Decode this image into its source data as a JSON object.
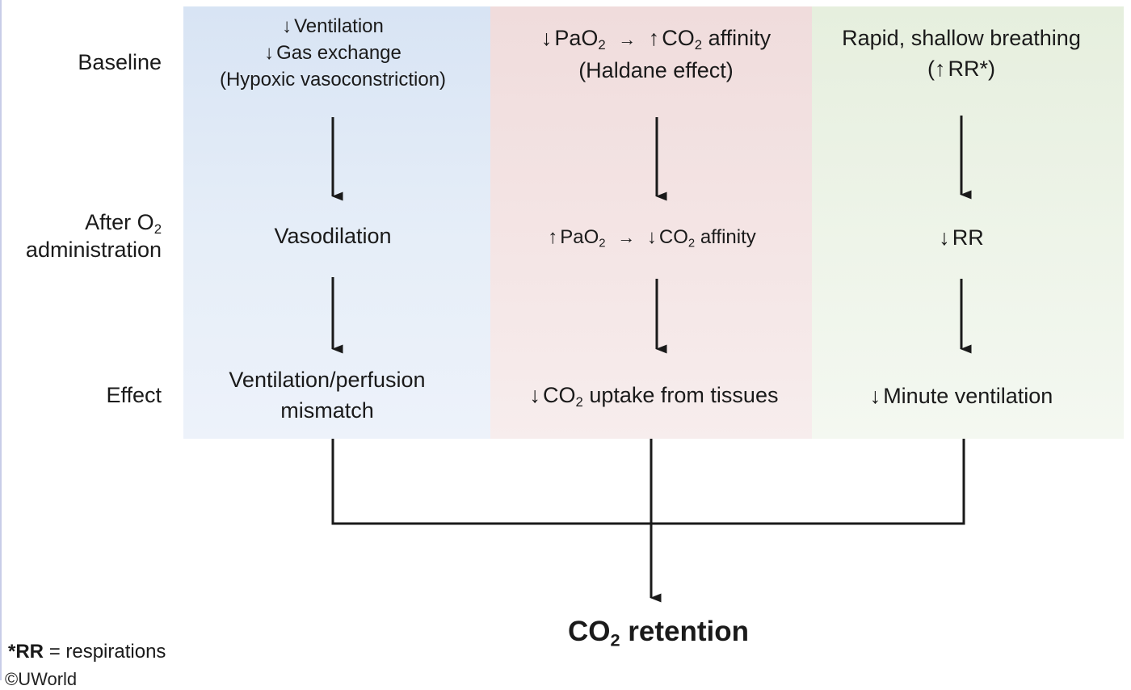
{
  "row_labels": {
    "baseline": "Baseline",
    "after_line1": "After O",
    "after_sub": "2",
    "after_line2": "administration",
    "effect": "Effect"
  },
  "arrows": {
    "down": "↓",
    "up": "↑",
    "right": "→"
  },
  "columns": {
    "ventilation": {
      "baseline_line1": "Ventilation",
      "baseline_line2": "Gas exchange",
      "baseline_line3": "(Hypoxic vasoconstriction)",
      "after": "Vasodilation",
      "effect_line1": "Ventilation/perfusion",
      "effect_line2": "mismatch"
    },
    "haldane": {
      "baseline_pao": "PaO",
      "baseline_co": "CO",
      "baseline_affinity": "affinity",
      "baseline_line2": "(Haldane effect)",
      "after_pao": "PaO",
      "after_co": "CO",
      "after_affinity": "affinity",
      "effect_co": "CO",
      "effect_rest": "uptake from tissues",
      "sub": "2"
    },
    "breathing": {
      "baseline_line1": "Rapid, shallow breathing",
      "baseline_open": "(",
      "baseline_rr": "RR*)",
      "after": "RR",
      "effect": "Minute ventilation"
    }
  },
  "result": {
    "prefix": "CO",
    "sub": "2",
    "suffix": "retention"
  },
  "footnote": {
    "term": "*RR",
    "definition": "= respirations"
  },
  "copyright": "©UWorld",
  "colors": {
    "ventilation_column": "#dde7f5",
    "haldane_column": "#f2e0e0",
    "breathing_column": "#e9f1e3",
    "arrow": "#1a1a1a"
  }
}
